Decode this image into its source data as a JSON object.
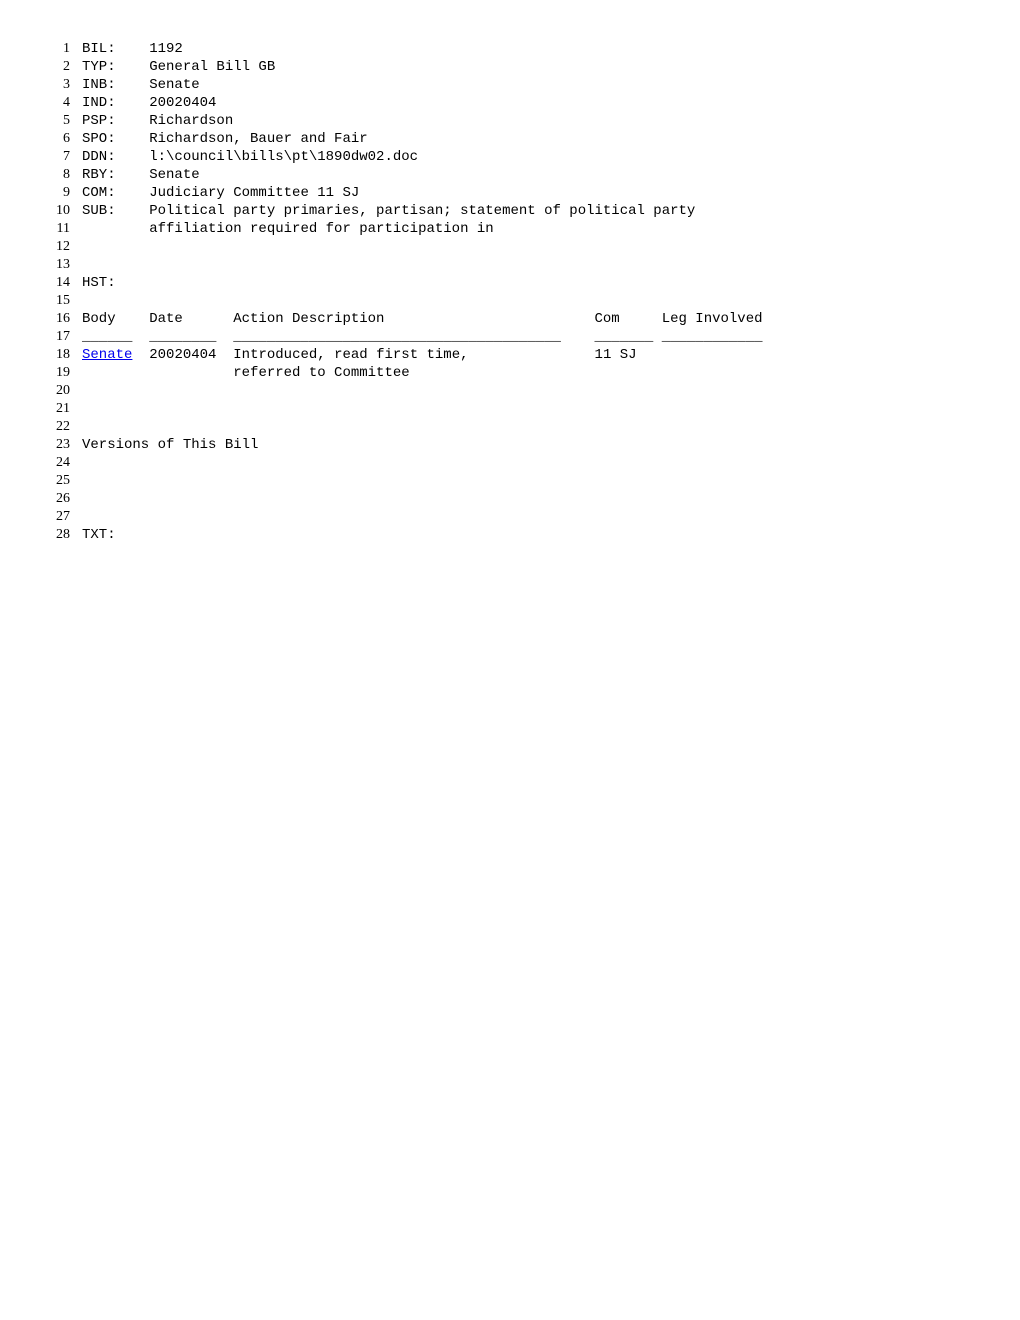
{
  "lines": {
    "1": {
      "label": "BIL:",
      "value": "1192"
    },
    "2": {
      "label": "TYP:",
      "value": "General Bill GB"
    },
    "3": {
      "label": "INB:",
      "value": "Senate"
    },
    "4": {
      "label": "IND:",
      "value": "20020404"
    },
    "5": {
      "label": "PSP:",
      "value": "Richardson"
    },
    "6": {
      "label": "SPO:",
      "value": "Richardson, Bauer and Fair"
    },
    "7": {
      "label": "DDN:",
      "value": "l:\\council\\bills\\pt\\1890dw02.doc"
    },
    "8": {
      "label": "RBY:",
      "value": "Senate"
    },
    "9": {
      "label": "COM:",
      "value": "Judiciary Committee 11 SJ"
    },
    "10": {
      "label": "SUB:",
      "value": "Political party primaries, partisan; statement of political party"
    },
    "11": {
      "label": "",
      "value": "affiliation required for participation in"
    }
  },
  "hst_label": "HST:",
  "history_header": "Body    Date      Action Description                         Com     Leg Involved",
  "history_underline": "______  ________  _______________________________________    _______ ____________",
  "history_row": {
    "body_link": "Senate",
    "date": "20020404",
    "action1": "Introduced, read first time,",
    "action2": "referred to Committee",
    "com": "11 SJ"
  },
  "versions_label": "Versions of This Bill",
  "txt_label": "TXT:",
  "label_width": 8
}
